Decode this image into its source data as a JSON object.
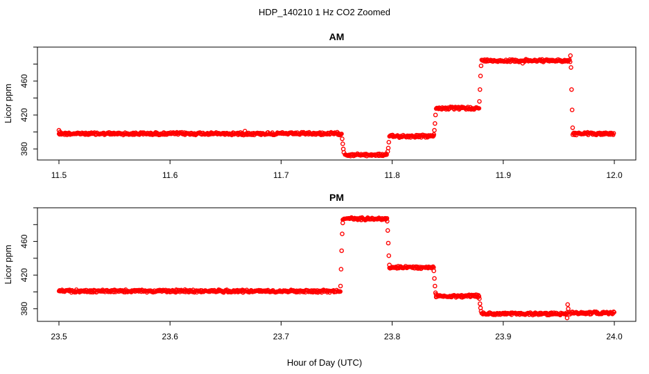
{
  "figure": {
    "title": "HDP_140210  1 Hz CO2 Zoomed",
    "xlabel": "Hour of Day (UTC)"
  },
  "colors": {
    "points": "#ff0000",
    "axis": "#000000"
  },
  "chart_data": [
    {
      "type": "scatter",
      "title": "AM",
      "ylabel": "Licor ppm",
      "xlim": [
        11.5,
        12.0
      ],
      "ylim": [
        367,
        500
      ],
      "xticks": [
        "11.5",
        "11.6",
        "11.7",
        "11.8",
        "11.9",
        "12.0"
      ],
      "yticks": [
        "380",
        "420",
        "460"
      ],
      "series": [
        {
          "segments": [
            {
              "x": [
                11.5,
                11.7545
              ],
              "y": 398
            },
            {
              "x": [
                11.7575,
                11.7955
              ],
              "y": 373
            },
            {
              "x": [
                11.7975,
                11.8375
              ],
              "y": 395
            },
            {
              "x": [
                11.8395,
                11.8785
              ],
              "y": 428
            },
            {
              "x": [
                11.8805,
                11.9605
              ],
              "y": 484
            },
            {
              "x": [
                11.9625,
                12.0
              ],
              "y": 398
            }
          ],
          "x": [
            11.5,
            11.501,
            11.502,
            11.6675,
            11.755,
            11.7555,
            11.756,
            11.7565,
            11.796,
            11.7965,
            11.797,
            11.8375,
            11.838,
            11.8385,
            11.839,
            11.8785,
            11.879,
            11.8795,
            11.88,
            11.9175,
            11.9605,
            11.961,
            11.9615,
            11.962,
            11.9625
          ],
          "y": [
            402,
            400,
            399,
            401,
            392,
            386,
            380,
            376,
            377,
            381,
            388,
            397,
            402,
            410,
            420,
            436,
            450,
            466,
            478,
            481,
            490,
            476,
            450,
            426,
            405
          ]
        }
      ]
    },
    {
      "type": "scatter",
      "title": "PM",
      "ylabel": "Licor ppm",
      "xlim": [
        23.5,
        24.0
      ],
      "ylim": [
        365,
        500
      ],
      "xticks": [
        "23.5",
        "23.6",
        "23.7",
        "23.8",
        "23.9",
        "24.0"
      ],
      "yticks": [
        "380",
        "420",
        "460"
      ],
      "series": [
        {
          "segments": [
            {
              "x": [
                23.5,
                23.7535
              ],
              "y": 401
            },
            {
              "x": [
                23.7555,
                23.7955
              ],
              "y": 487
            },
            {
              "x": [
                23.7975,
                23.8375
              ],
              "y": 429
            },
            {
              "x": [
                23.8395,
                23.8785
              ],
              "y": 395
            },
            {
              "x": [
                23.8805,
                23.9575
              ],
              "y": 374
            },
            {
              "x": [
                23.9595,
                24.0
              ],
              "y": 375
            }
          ],
          "x": [
            23.7535,
            23.754,
            23.7545,
            23.755,
            23.7555,
            23.7955,
            23.796,
            23.7965,
            23.797,
            23.7975,
            23.8375,
            23.838,
            23.8385,
            23.839,
            23.8395,
            23.8785,
            23.879,
            23.8795,
            23.88,
            23.9575,
            23.958,
            23.9585
          ],
          "y": [
            407,
            427,
            449,
            469,
            482,
            484,
            473,
            458,
            443,
            432,
            425,
            416,
            407,
            399,
            397,
            392,
            386,
            381,
            377,
            369,
            385,
            380
          ]
        }
      ]
    }
  ]
}
